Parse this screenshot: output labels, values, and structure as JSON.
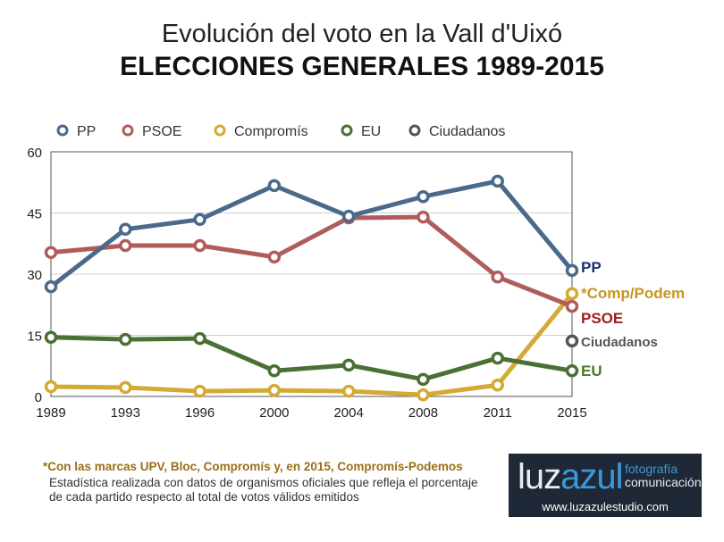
{
  "title": "Evolución del voto en la Vall d'Uixó",
  "subtitle": "ELECCIONES GENERALES 1989-2015",
  "chart_data": {
    "type": "line",
    "categories": [
      "1989",
      "1993",
      "1996",
      "2000",
      "2004",
      "2008",
      "2011",
      "2015"
    ],
    "ylim": [
      0,
      60
    ],
    "yticks": [
      "0",
      "15",
      "30",
      "45",
      "60"
    ],
    "grid": true,
    "legend_position": "top",
    "series": [
      {
        "name": "PP",
        "color": "#4b6a8b",
        "values": [
          26.9,
          41,
          43.4,
          51.7,
          44.2,
          49,
          52.8,
          30.9
        ],
        "end_label": "PP",
        "end_label_color": "#1c2f6e"
      },
      {
        "name": "PSOE",
        "color": "#b05c5c",
        "values": [
          35.3,
          37,
          37,
          34.2,
          43.8,
          44,
          29.3,
          22.1
        ],
        "end_label": "PSOE",
        "end_label_color": "#a01c1c"
      },
      {
        "name": "Compromís",
        "color": "#d3aa33",
        "values": [
          2.4,
          2.2,
          1.3,
          1.5,
          1.3,
          0.4,
          2.8,
          25.2
        ],
        "end_label": "*Comp/Podem",
        "end_label_color": "#c8961e"
      },
      {
        "name": "EU",
        "color": "#4a7033",
        "values": [
          14.5,
          14,
          14.2,
          6.3,
          7.7,
          4.2,
          9.4,
          6.3
        ],
        "end_label": "EU",
        "end_label_color": "#4a7a22"
      },
      {
        "name": "Ciudadanos",
        "color": "#555555",
        "values": [
          null,
          null,
          null,
          null,
          null,
          null,
          null,
          13.6
        ],
        "end_label": "Ciudadanos",
        "end_label_color": "#555555"
      }
    ]
  },
  "footnote": "*Con las marcas UPV, Bloc, Compromís y, en 2015, Compromís-Podemos",
  "description": "Estadística realizada con datos de organismos oficiales que refleja el porcentaje de cada partido respecto al total de votos válidos emitidos",
  "logo": {
    "luz": "luz",
    "azul": "azul",
    "line1": "fotografía",
    "line2": "comunicación",
    "url": "www.luzazulestudio.com"
  }
}
